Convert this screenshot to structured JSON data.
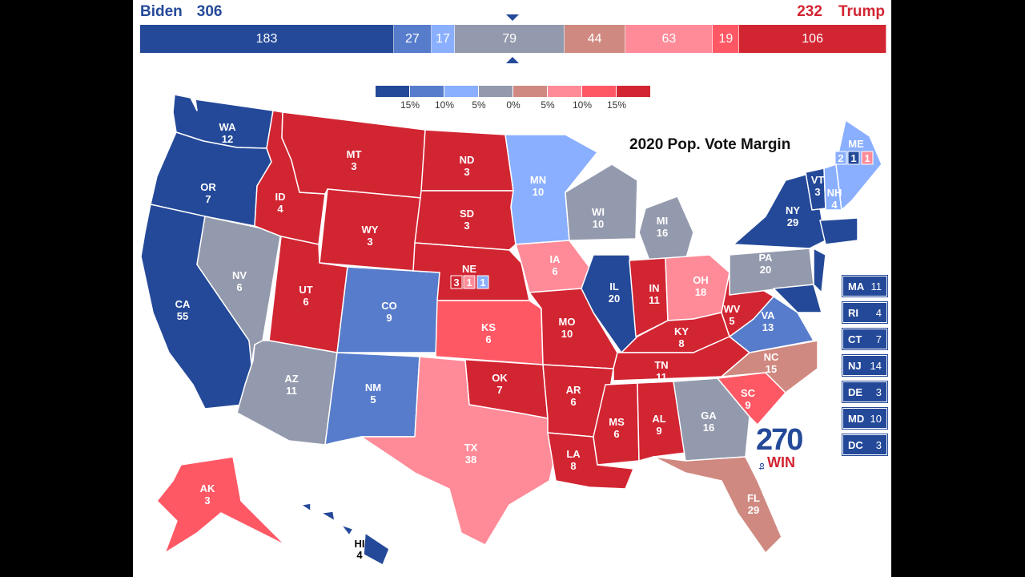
{
  "header": {
    "biden": {
      "name": "Biden",
      "votes": "306"
    },
    "trump": {
      "name": "Trump",
      "votes": "232"
    }
  },
  "bar": [
    {
      "value": "183",
      "color": "#244999",
      "ev": 183
    },
    {
      "value": "27",
      "color": "#577ccc",
      "ev": 27
    },
    {
      "value": "17",
      "color": "#8aafff",
      "ev": 17
    },
    {
      "value": "79",
      "color": "#949aad",
      "ev": 79
    },
    {
      "value": "44",
      "color": "#cf8980",
      "ev": 44
    },
    {
      "value": "63",
      "color": "#ff8b98",
      "ev": 63
    },
    {
      "value": "19",
      "color": "#ff5865",
      "ev": 19
    },
    {
      "value": "106",
      "color": "#d22532",
      "ev": 106
    }
  ],
  "legend": {
    "colors": [
      "#244999",
      "#577ccc",
      "#8aafff",
      "#949aad",
      "#cf8980",
      "#ff8b98",
      "#ff5865",
      "#d22532"
    ],
    "labels": [
      "15%",
      "10%",
      "5%",
      "0%",
      "5%",
      "10%",
      "15%"
    ]
  },
  "map_title": "2020 Pop. Vote Margin",
  "logo": {
    "number": "270",
    "to": "to",
    "win": "WIN"
  },
  "states": [
    {
      "abbr": "WA",
      "ev": "12"
    },
    {
      "abbr": "OR",
      "ev": "7"
    },
    {
      "abbr": "CA",
      "ev": "55"
    },
    {
      "abbr": "ID",
      "ev": "4"
    },
    {
      "abbr": "NV",
      "ev": "6"
    },
    {
      "abbr": "MT",
      "ev": "3"
    },
    {
      "abbr": "WY",
      "ev": "3"
    },
    {
      "abbr": "UT",
      "ev": "6"
    },
    {
      "abbr": "AZ",
      "ev": "11"
    },
    {
      "abbr": "CO",
      "ev": "9"
    },
    {
      "abbr": "NM",
      "ev": "5"
    },
    {
      "abbr": "ND",
      "ev": "3"
    },
    {
      "abbr": "SD",
      "ev": "3"
    },
    {
      "abbr": "NE",
      "ev": "3"
    },
    {
      "abbr": "KS",
      "ev": "6"
    },
    {
      "abbr": "OK",
      "ev": "7"
    },
    {
      "abbr": "TX",
      "ev": "38"
    },
    {
      "abbr": "MN",
      "ev": "10"
    },
    {
      "abbr": "IA",
      "ev": "6"
    },
    {
      "abbr": "MO",
      "ev": "10"
    },
    {
      "abbr": "AR",
      "ev": "6"
    },
    {
      "abbr": "LA",
      "ev": "8"
    },
    {
      "abbr": "WI",
      "ev": "10"
    },
    {
      "abbr": "IL",
      "ev": "20"
    },
    {
      "abbr": "MI",
      "ev": "16"
    },
    {
      "abbr": "IN",
      "ev": "11"
    },
    {
      "abbr": "OH",
      "ev": "18"
    },
    {
      "abbr": "KY",
      "ev": "8"
    },
    {
      "abbr": "TN",
      "ev": "11"
    },
    {
      "abbr": "MS",
      "ev": "6"
    },
    {
      "abbr": "AL",
      "ev": "9"
    },
    {
      "abbr": "GA",
      "ev": "16"
    },
    {
      "abbr": "FL",
      "ev": "29"
    },
    {
      "abbr": "SC",
      "ev": "9"
    },
    {
      "abbr": "NC",
      "ev": "15"
    },
    {
      "abbr": "VA",
      "ev": "13"
    },
    {
      "abbr": "WV",
      "ev": "5"
    },
    {
      "abbr": "PA",
      "ev": "20"
    },
    {
      "abbr": "NY",
      "ev": "29"
    },
    {
      "abbr": "VT",
      "ev": "3"
    },
    {
      "abbr": "NH",
      "ev": "4"
    },
    {
      "abbr": "ME",
      "ev": ""
    },
    {
      "abbr": "AK",
      "ev": "3"
    },
    {
      "abbr": "HI",
      "ev": "4"
    }
  ],
  "split_votes": {
    "me": [
      "2",
      "1",
      "1"
    ],
    "ne": [
      "3",
      "1",
      "1"
    ]
  },
  "small_states": [
    {
      "abbr": "MA",
      "ev": "11"
    },
    {
      "abbr": "RI",
      "ev": "4"
    },
    {
      "abbr": "CT",
      "ev": "7"
    },
    {
      "abbr": "NJ",
      "ev": "14"
    },
    {
      "abbr": "DE",
      "ev": "3"
    },
    {
      "abbr": "MD",
      "ev": "10"
    },
    {
      "abbr": "DC",
      "ev": "3"
    }
  ]
}
